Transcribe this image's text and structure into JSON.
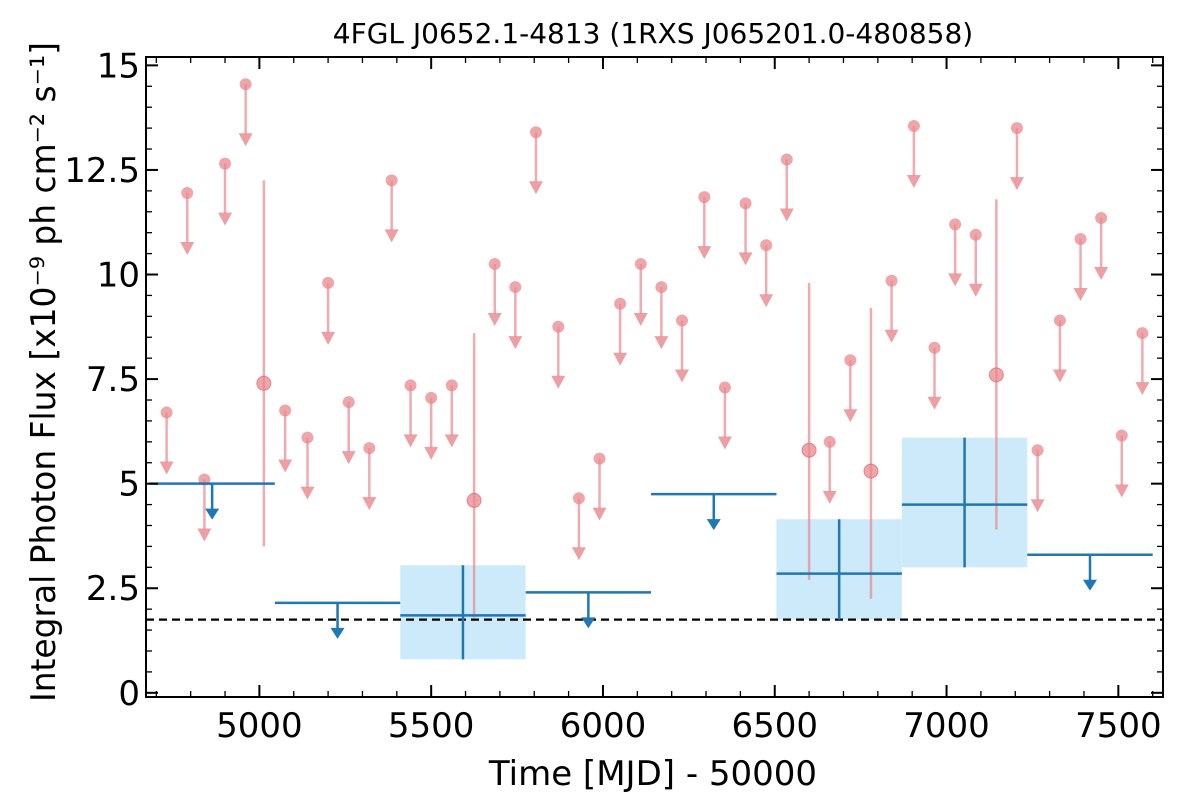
{
  "chart_data": {
    "type": "scatter",
    "title": "4FGL J0652.1-4813 (1RXS J065201.0-480858)",
    "xlabel": "Time [MJD] - 50000",
    "ylabel": "Integral Photon Flux [x10⁻⁹ ph cm⁻² s⁻¹]",
    "xlim": [
      4670,
      7630
    ],
    "ylim": [
      -0.1,
      15.2
    ],
    "xticks": [
      5000,
      5500,
      6000,
      6500,
      7000,
      7500
    ],
    "xtick_labels": [
      "5000",
      "5500",
      "6000",
      "6500",
      "7000",
      "7500"
    ],
    "yticks": [
      0,
      2.5,
      5,
      7.5,
      10,
      12.5,
      15
    ],
    "ytick_labels": [
      "0",
      "2.5",
      "5",
      "7.5",
      "10",
      "12.5",
      "15"
    ],
    "grid": false,
    "reference_line": {
      "y": 1.75,
      "style": "dashed",
      "color": "#000000"
    },
    "colors": {
      "short_bins": "#e8888d",
      "long_bins": "#1f77b4",
      "error_box": "#cdeafb"
    },
    "series": [
      {
        "kind": "detections",
        "points": [
          {
            "x": 5013,
            "y": 7.4,
            "ylo": 3.5,
            "yhi": 12.25
          },
          {
            "x": 5625,
            "y": 4.6,
            "ylo": 1.8,
            "yhi": 8.6
          },
          {
            "x": 6600,
            "y": 5.8,
            "ylo": 2.7,
            "yhi": 9.8
          },
          {
            "x": 6780,
            "y": 5.3,
            "ylo": 2.25,
            "yhi": 9.2
          },
          {
            "x": 7145,
            "y": 7.6,
            "ylo": 3.9,
            "yhi": 11.8
          }
        ]
      },
      {
        "kind": "upper_limits",
        "points": [
          {
            "x": 4730,
            "y": 6.7
          },
          {
            "x": 4790,
            "y": 11.95
          },
          {
            "x": 4840,
            "y": 5.1
          },
          {
            "x": 4900,
            "y": 12.65
          },
          {
            "x": 4960,
            "y": 14.55
          },
          {
            "x": 5075,
            "y": 6.75
          },
          {
            "x": 5140,
            "y": 6.1
          },
          {
            "x": 5200,
            "y": 9.8
          },
          {
            "x": 5260,
            "y": 6.95
          },
          {
            "x": 5320,
            "y": 5.85
          },
          {
            "x": 5385,
            "y": 12.25
          },
          {
            "x": 5440,
            "y": 7.35
          },
          {
            "x": 5500,
            "y": 7.05
          },
          {
            "x": 5560,
            "y": 7.35
          },
          {
            "x": 5685,
            "y": 10.25
          },
          {
            "x": 5745,
            "y": 9.7
          },
          {
            "x": 5805,
            "y": 13.4
          },
          {
            "x": 5870,
            "y": 8.75
          },
          {
            "x": 5930,
            "y": 4.65
          },
          {
            "x": 5990,
            "y": 5.6
          },
          {
            "x": 6050,
            "y": 9.3
          },
          {
            "x": 6110,
            "y": 10.25
          },
          {
            "x": 6170,
            "y": 9.7
          },
          {
            "x": 6230,
            "y": 8.9
          },
          {
            "x": 6295,
            "y": 11.85
          },
          {
            "x": 6355,
            "y": 7.3
          },
          {
            "x": 6415,
            "y": 11.7
          },
          {
            "x": 6475,
            "y": 10.7
          },
          {
            "x": 6535,
            "y": 12.75
          },
          {
            "x": 6660,
            "y": 6.0
          },
          {
            "x": 6720,
            "y": 7.95
          },
          {
            "x": 6840,
            "y": 9.85
          },
          {
            "x": 6905,
            "y": 13.55
          },
          {
            "x": 6965,
            "y": 8.25
          },
          {
            "x": 7025,
            "y": 11.2
          },
          {
            "x": 7085,
            "y": 10.95
          },
          {
            "x": 7205,
            "y": 13.5
          },
          {
            "x": 7265,
            "y": 5.8
          },
          {
            "x": 7330,
            "y": 8.9
          },
          {
            "x": 7390,
            "y": 10.85
          },
          {
            "x": 7450,
            "y": 11.35
          },
          {
            "x": 7510,
            "y": 6.15
          },
          {
            "x": 7570,
            "y": 8.6
          }
        ]
      },
      {
        "kind": "long_bin_upper_limits",
        "bins": [
          {
            "x0": 4680,
            "x1": 5045,
            "y": 5.0
          },
          {
            "x0": 5045,
            "x1": 5410,
            "y": 2.15
          },
          {
            "x0": 5775,
            "x1": 6140,
            "y": 2.4
          },
          {
            "x0": 6140,
            "x1": 6505,
            "y": 4.75
          },
          {
            "x0": 7235,
            "x1": 7600,
            "y": 3.3
          }
        ]
      },
      {
        "kind": "long_bin_detections",
        "bins": [
          {
            "x0": 5410,
            "x1": 5775,
            "y": 1.85,
            "ylo": 0.8,
            "yhi": 3.05
          },
          {
            "x0": 6505,
            "x1": 6870,
            "y": 2.85,
            "ylo": 1.75,
            "yhi": 4.15
          },
          {
            "x0": 6870,
            "x1": 7235,
            "y": 4.5,
            "ylo": 3.0,
            "yhi": 6.1
          }
        ]
      }
    ]
  }
}
